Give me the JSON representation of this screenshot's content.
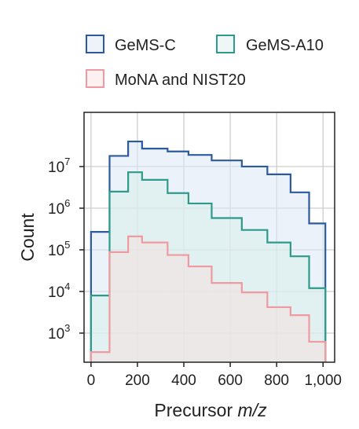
{
  "chart_data": {
    "type": "histogram",
    "xlabel": "Precursor",
    "xlabel_italic": "m/z",
    "ylabel": "Count",
    "yscale": "log",
    "ylim": [
      200,
      200000000
    ],
    "xlim": [
      -30,
      1050
    ],
    "grid": true,
    "legend_position": "top",
    "xticks": [
      0,
      200,
      400,
      600,
      800,
      1000
    ],
    "xtick_labels": [
      "0",
      "200",
      "400",
      "600",
      "800",
      "1,000"
    ],
    "yticks": [
      {
        "value": 1000,
        "base": "10",
        "exp": "3"
      },
      {
        "value": 10000,
        "base": "10",
        "exp": "4"
      },
      {
        "value": 100000,
        "base": "10",
        "exp": "5"
      },
      {
        "value": 1000000,
        "base": "10",
        "exp": "6"
      },
      {
        "value": 10000000,
        "base": "10",
        "exp": "7"
      }
    ],
    "bin_edges": [
      0,
      80,
      160,
      220,
      330,
      420,
      520,
      650,
      760,
      860,
      940,
      1010
    ],
    "series": [
      {
        "name": "GeMS-C",
        "color": "#2b5a9e",
        "fill": "#dce8f4",
        "values": [
          270000,
          18000000,
          40000000,
          27000000,
          23000000,
          19000000,
          14000000,
          10000000,
          6500000,
          2400000,
          430000
        ]
      },
      {
        "name": "GeMS-A10",
        "color": "#2e9a8a",
        "fill": "#d8eeea",
        "values": [
          8000,
          2500000,
          7300000,
          4800000,
          2300000,
          1300000,
          580000,
          300000,
          150000,
          70000,
          12000
        ]
      },
      {
        "name": "MoNA and NIST20",
        "color": "#ee9aa0",
        "fill": "#f6e2e2",
        "values": [
          350,
          88000,
          210000,
          150000,
          75000,
          40000,
          16000,
          9500,
          4200,
          2700,
          620
        ]
      }
    ]
  },
  "legend": {
    "items": [
      {
        "label": "GeMS-C"
      },
      {
        "label": "GeMS-A10"
      },
      {
        "label": "MoNA and NIST20"
      }
    ]
  }
}
